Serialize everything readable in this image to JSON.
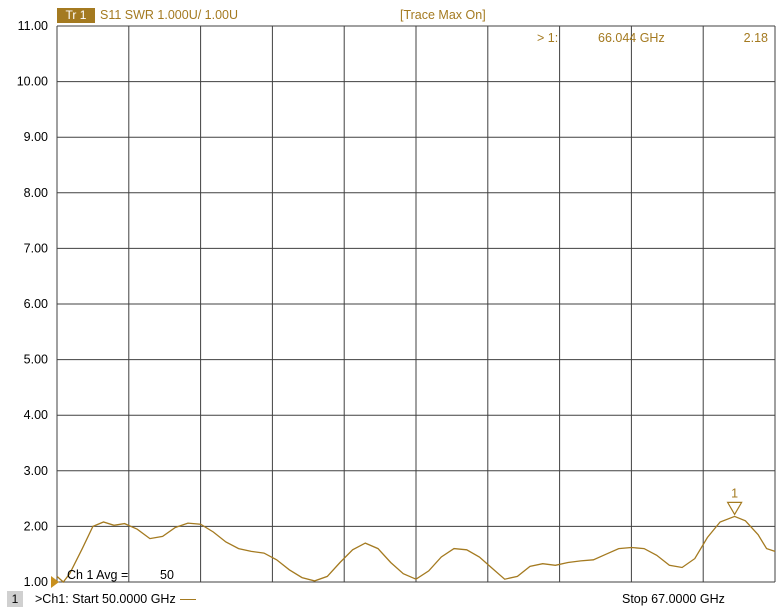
{
  "header": {
    "trace_badge": "Tr 1",
    "trace_label": "S11 SWR 1.000U/  1.00U",
    "status": "[Trace Max On]"
  },
  "marker": {
    "readout_index": "> 1:",
    "readout_freq": "66.044 GHz",
    "readout_value": "2.18",
    "flag_label": "1",
    "x": 66.044,
    "y": 2.18
  },
  "annotation": {
    "avg_label": "Ch 1 Avg =",
    "avg_value": "50"
  },
  "footer": {
    "channel_box": "1",
    "start_text": ">Ch1:  Start  50.0000 GHz",
    "stop_text": "Stop  67.0000 GHz"
  },
  "colors": {
    "trace": "#a47a20",
    "grid": "#404040",
    "badge_bg": "#a47a20"
  },
  "chart_data": {
    "type": "line",
    "title": "",
    "xlabel": "",
    "ylabel": "",
    "xlim": [
      50.0,
      67.0
    ],
    "ylim": [
      1.0,
      11.0
    ],
    "grid": true,
    "x_divisions": 10,
    "y_ticks": [
      "1.00",
      "2.00",
      "3.00",
      "4.00",
      "5.00",
      "6.00",
      "7.00",
      "8.00",
      "9.00",
      "10.00",
      "11.00"
    ],
    "series": [
      {
        "x": [
          50.0,
          50.15,
          50.3,
          50.6,
          50.85,
          51.1,
          51.35,
          51.6,
          51.9,
          52.2,
          52.5,
          52.8,
          53.1,
          53.4,
          53.7,
          54.0,
          54.3,
          54.6,
          54.9,
          55.2,
          55.5,
          55.8,
          56.1,
          56.4,
          56.7,
          57.0,
          57.3,
          57.6,
          57.9,
          58.2,
          58.5,
          58.8,
          59.1,
          59.4,
          59.7,
          60.0,
          60.3,
          60.6,
          60.9,
          61.2,
          61.5,
          61.8,
          62.1,
          62.4,
          62.7,
          63.0,
          63.3,
          63.6,
          63.9,
          64.2,
          64.5,
          64.8,
          65.1,
          65.4,
          65.7,
          66.044,
          66.3,
          66.6,
          66.8,
          67.0
        ],
        "y": [
          1.1,
          1.0,
          1.15,
          1.6,
          2.0,
          2.08,
          2.02,
          2.05,
          1.95,
          1.78,
          1.82,
          1.98,
          2.06,
          2.04,
          1.9,
          1.72,
          1.6,
          1.55,
          1.52,
          1.4,
          1.22,
          1.08,
          1.02,
          1.1,
          1.35,
          1.58,
          1.7,
          1.6,
          1.35,
          1.15,
          1.05,
          1.2,
          1.45,
          1.6,
          1.58,
          1.45,
          1.25,
          1.05,
          1.1,
          1.28,
          1.33,
          1.3,
          1.35,
          1.38,
          1.4,
          1.5,
          1.6,
          1.62,
          1.6,
          1.48,
          1.3,
          1.26,
          1.42,
          1.8,
          2.08,
          2.18,
          2.1,
          1.85,
          1.6,
          1.55
        ]
      }
    ]
  }
}
